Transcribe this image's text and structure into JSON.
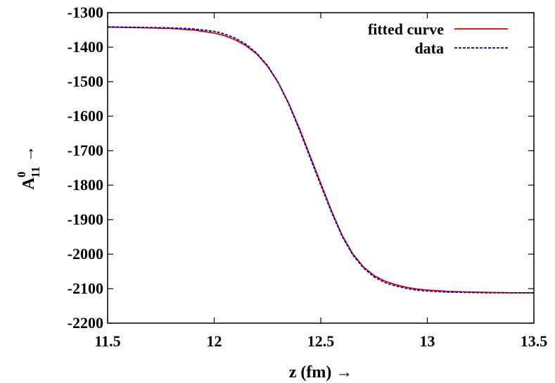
{
  "chart_data": {
    "type": "line",
    "xlabel": "z (fm) →",
    "ylabel": {
      "base": "A",
      "superscript": "0",
      "subscript": "11",
      "arrow": "→"
    },
    "xlim": [
      11.5,
      13.5
    ],
    "ylim": [
      -2200,
      -1300
    ],
    "xticks": [
      11.5,
      12,
      12.5,
      13,
      13.5
    ],
    "xtick_labels": [
      "11.5",
      "12",
      "12.5",
      "13",
      "13.5"
    ],
    "yticks": [
      -1300,
      -1400,
      -1500,
      -1600,
      -1700,
      -1800,
      -1900,
      -2000,
      -2100,
      -2200
    ],
    "ytick_labels": [
      "-1300",
      "-1400",
      "-1500",
      "-1600",
      "-1700",
      "-1800",
      "-1900",
      "-2000",
      "-2100",
      "-2200"
    ],
    "grid": false,
    "legend_position": "top-right",
    "series": [
      {
        "name": "fitted curve",
        "color": "#e00000",
        "style": "solid",
        "x": [
          11.5,
          11.6,
          11.7,
          11.8,
          11.9,
          12.0,
          12.05,
          12.1,
          12.15,
          12.2,
          12.25,
          12.3,
          12.35,
          12.4,
          12.45,
          12.5,
          12.55,
          12.6,
          12.65,
          12.7,
          12.75,
          12.8,
          12.85,
          12.9,
          12.95,
          13.0,
          13.1,
          13.2,
          13.3,
          13.4,
          13.5
        ],
        "y": [
          -1342,
          -1343,
          -1344,
          -1346,
          -1350,
          -1359,
          -1367,
          -1379,
          -1396,
          -1420,
          -1455,
          -1502,
          -1563,
          -1636,
          -1715,
          -1795,
          -1874,
          -1945,
          -1999,
          -2037,
          -2062,
          -2078,
          -2088,
          -2096,
          -2101,
          -2104,
          -2108,
          -2110,
          -2111,
          -2112,
          -2112
        ]
      },
      {
        "name": "data",
        "color": "#0000cc",
        "style": "dashed",
        "x": [
          11.5,
          11.6,
          11.7,
          11.8,
          11.9,
          12.0,
          12.05,
          12.1,
          12.15,
          12.2,
          12.25,
          12.3,
          12.35,
          12.4,
          12.45,
          12.5,
          12.55,
          12.6,
          12.65,
          12.7,
          12.75,
          12.8,
          12.85,
          12.9,
          12.95,
          13.0,
          13.1,
          13.2,
          13.3,
          13.4,
          13.5
        ],
        "y": [
          -1341,
          -1342,
          -1343,
          -1344,
          -1347,
          -1354,
          -1362,
          -1374,
          -1392,
          -1418,
          -1453,
          -1502,
          -1565,
          -1640,
          -1720,
          -1800,
          -1878,
          -1948,
          -2002,
          -2040,
          -2066,
          -2082,
          -2092,
          -2099,
          -2104,
          -2107,
          -2110,
          -2111,
          -2112,
          -2112,
          -2112
        ]
      }
    ]
  }
}
